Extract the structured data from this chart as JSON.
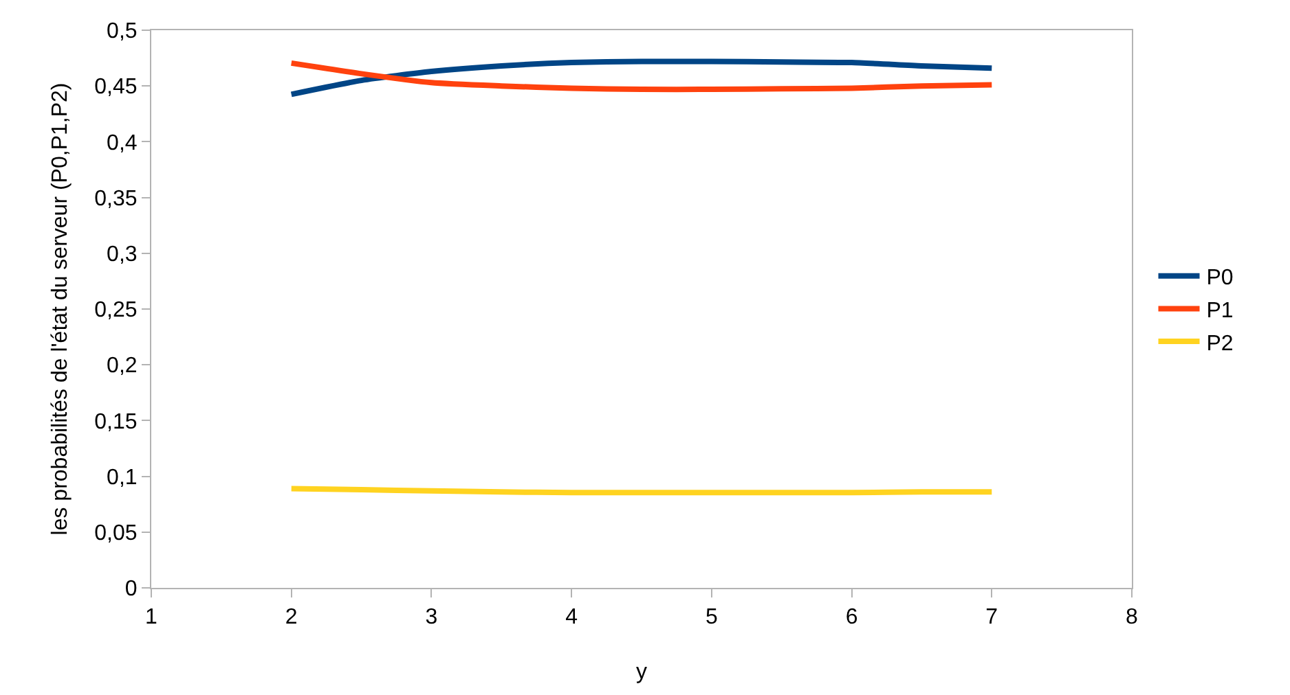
{
  "chart_data": {
    "type": "line",
    "xlabel": "y",
    "ylabel": "les probabilités de l'état du serveur (P0,P1,P2)",
    "x": [
      2,
      2.5,
      3,
      3.5,
      4,
      4.5,
      5,
      5.5,
      6,
      6.5,
      7
    ],
    "series": [
      {
        "name": "P0",
        "color": "#004586",
        "values": [
          0.4425,
          0.455,
          0.463,
          0.468,
          0.471,
          0.472,
          0.472,
          0.4715,
          0.471,
          0.468,
          0.466
        ]
      },
      {
        "name": "P1",
        "color": "#ff420e",
        "values": [
          0.4705,
          0.461,
          0.453,
          0.45,
          0.448,
          0.447,
          0.447,
          0.4475,
          0.448,
          0.45,
          0.451
        ]
      },
      {
        "name": "P2",
        "color": "#ffd320",
        "values": [
          0.089,
          0.088,
          0.087,
          0.086,
          0.0855,
          0.0855,
          0.0855,
          0.0855,
          0.0855,
          0.086,
          0.086
        ]
      }
    ],
    "xlim": [
      1,
      8
    ],
    "xticks": [
      1,
      2,
      3,
      4,
      5,
      6,
      7,
      8
    ],
    "ylim": [
      0,
      0.5
    ],
    "yticks": [
      {
        "value": 0,
        "label": "0"
      },
      {
        "value": 0.05,
        "label": "0,05"
      },
      {
        "value": 0.1,
        "label": "0,1"
      },
      {
        "value": 0.15,
        "label": "0,15"
      },
      {
        "value": 0.2,
        "label": "0,2"
      },
      {
        "value": 0.25,
        "label": "0,25"
      },
      {
        "value": 0.3,
        "label": "0,3"
      },
      {
        "value": 0.35,
        "label": "0,35"
      },
      {
        "value": 0.4,
        "label": "0,4"
      },
      {
        "value": 0.45,
        "label": "0,45"
      },
      {
        "value": 0.5,
        "label": "0,5"
      }
    ],
    "grid": false,
    "legend": "right",
    "marker": "none",
    "line_style": "solid"
  }
}
